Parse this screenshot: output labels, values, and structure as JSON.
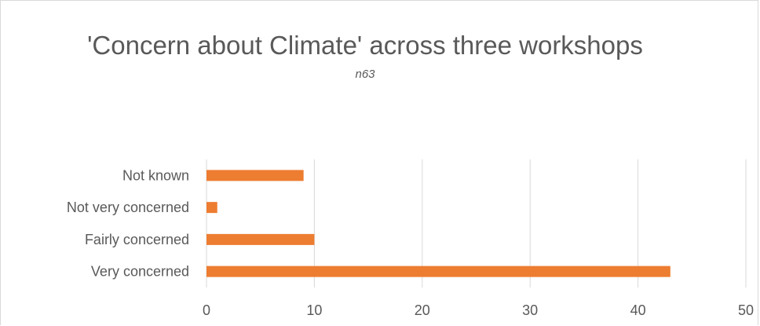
{
  "chart_data": {
    "type": "bar",
    "orientation": "horizontal",
    "title": "'Concern about Climate' across three workshops",
    "subtitle": "n63",
    "categories": [
      "Very concerned",
      "Fairly concerned",
      "Not very concerned",
      "Not known"
    ],
    "values": [
      43,
      10,
      1,
      9
    ],
    "xlim": [
      0,
      50
    ],
    "xticks": [
      "0",
      "10",
      "20",
      "30",
      "40",
      "50"
    ],
    "grid": true,
    "bar_color": "#ed7d31"
  }
}
